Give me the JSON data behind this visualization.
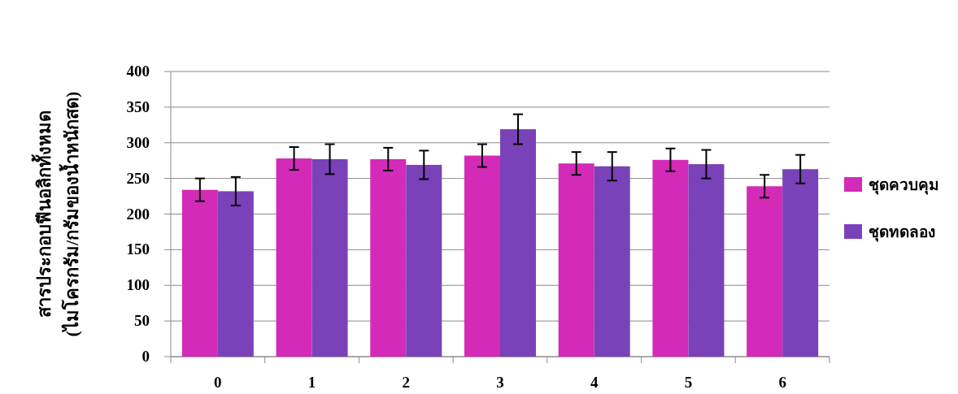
{
  "chart_data": {
    "type": "bar",
    "ylabel": "สารประกอบฟีนอลิกทั้งหมด\n(ไมโครกรัม/กรัมของน้ำหนักสด)",
    "categories": [
      "0",
      "1",
      "2",
      "3",
      "4",
      "5",
      "6"
    ],
    "series": [
      {
        "name": "ชุดควบคุม",
        "color": "#d42ab8",
        "values": [
          234,
          278,
          277,
          282,
          271,
          276,
          239
        ],
        "errors": [
          16,
          16,
          16,
          16,
          16,
          16,
          16
        ]
      },
      {
        "name": "ชุดทดลอง",
        "color": "#7a42b8",
        "values": [
          232,
          277,
          269,
          319,
          267,
          270,
          263
        ],
        "errors": [
          20,
          21,
          20,
          21,
          20,
          20,
          20
        ]
      }
    ],
    "ylim": [
      0,
      400
    ],
    "yticks": [
      0,
      50,
      100,
      150,
      200,
      250,
      300,
      350,
      400
    ],
    "grid": "y",
    "legend": "right"
  }
}
